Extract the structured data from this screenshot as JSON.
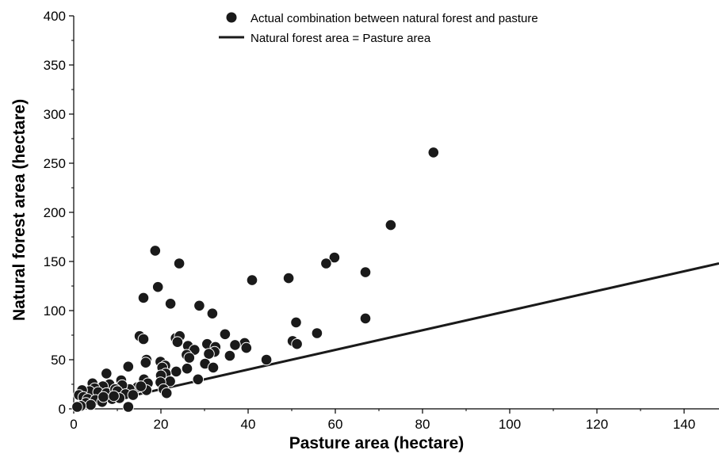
{
  "chart_data": {
    "type": "scatter",
    "xlabel": "Pasture area (hectare)",
    "ylabel": "Natural forest area (hectare)",
    "xlim": [
      0,
      148
    ],
    "ylim": [
      0,
      400
    ],
    "x_ticks": [
      0,
      20,
      40,
      60,
      80,
      100,
      120,
      140
    ],
    "y_ticks": [
      0,
      50,
      100,
      150,
      200,
      250,
      300,
      350,
      400
    ],
    "grid": false,
    "legend_position": "top-center",
    "series": [
      {
        "name": "Actual combination between natural forest and pasture",
        "marker": "filled-circle",
        "color": "#1a1a1a",
        "points": [
          [
            82.5,
            261
          ],
          [
            72.7,
            187
          ],
          [
            18.7,
            161
          ],
          [
            24.2,
            148
          ],
          [
            59.8,
            154
          ],
          [
            57.9,
            148
          ],
          [
            66.9,
            139
          ],
          [
            49.3,
            133
          ],
          [
            40.9,
            131
          ],
          [
            19.3,
            124
          ],
          [
            16.0,
            113
          ],
          [
            22.2,
            107
          ],
          [
            28.8,
            105
          ],
          [
            31.8,
            97
          ],
          [
            66.9,
            92
          ],
          [
            51.0,
            88
          ],
          [
            55.8,
            77
          ],
          [
            34.7,
            76
          ],
          [
            15.1,
            74
          ],
          [
            16.0,
            71
          ],
          [
            23.4,
            72
          ],
          [
            24.3,
            74
          ],
          [
            23.8,
            68
          ],
          [
            39.2,
            67
          ],
          [
            50.2,
            69
          ],
          [
            51.2,
            66
          ],
          [
            37.0,
            65
          ],
          [
            30.6,
            66
          ],
          [
            32.5,
            63
          ],
          [
            26.2,
            64
          ],
          [
            39.6,
            62
          ],
          [
            27.7,
            60
          ],
          [
            32.3,
            58
          ],
          [
            25.9,
            55
          ],
          [
            31.0,
            56
          ],
          [
            35.8,
            54
          ],
          [
            26.5,
            52
          ],
          [
            44.2,
            50
          ],
          [
            30.1,
            46
          ],
          [
            32.0,
            42
          ],
          [
            16.7,
            50
          ],
          [
            16.5,
            47
          ],
          [
            19.9,
            48
          ],
          [
            21.0,
            44
          ],
          [
            20.3,
            42
          ],
          [
            26.0,
            41
          ],
          [
            23.5,
            38
          ],
          [
            12.5,
            43
          ],
          [
            21.1,
            36
          ],
          [
            20.0,
            34
          ],
          [
            7.5,
            36
          ],
          [
            10.9,
            29
          ],
          [
            16.1,
            30
          ],
          [
            28.5,
            30
          ],
          [
            22.1,
            28
          ],
          [
            17.0,
            26
          ],
          [
            19.9,
            27
          ],
          [
            14.6,
            22
          ],
          [
            16.7,
            19
          ],
          [
            20.6,
            20
          ],
          [
            21.3,
            16
          ],
          [
            12.8,
            20
          ],
          [
            11.1,
            24
          ],
          [
            8.2,
            25
          ],
          [
            6.7,
            23
          ],
          [
            4.3,
            26
          ],
          [
            4.8,
            21
          ],
          [
            3.6,
            18
          ],
          [
            5.6,
            17
          ],
          [
            7.5,
            16
          ],
          [
            9.5,
            20
          ],
          [
            10.0,
            18
          ],
          [
            11.9,
            15
          ],
          [
            13.6,
            14
          ],
          [
            1.9,
            19
          ],
          [
            1.2,
            14
          ],
          [
            2.2,
            12
          ],
          [
            3.2,
            10
          ],
          [
            5.0,
            9
          ],
          [
            6.5,
            7
          ],
          [
            8.8,
            10
          ],
          [
            10.5,
            11
          ],
          [
            2.8,
            6
          ],
          [
            3.9,
            4
          ],
          [
            1.6,
            3
          ],
          [
            0.8,
            2
          ],
          [
            12.5,
            2
          ],
          [
            6.8,
            12
          ],
          [
            9.2,
            13
          ],
          [
            15.4,
            23
          ]
        ]
      },
      {
        "name": "Natural forest area = Pasture area",
        "type": "line",
        "color": "#1a1a1a",
        "x": [
          0,
          148
        ],
        "y": [
          0,
          148
        ]
      }
    ]
  }
}
